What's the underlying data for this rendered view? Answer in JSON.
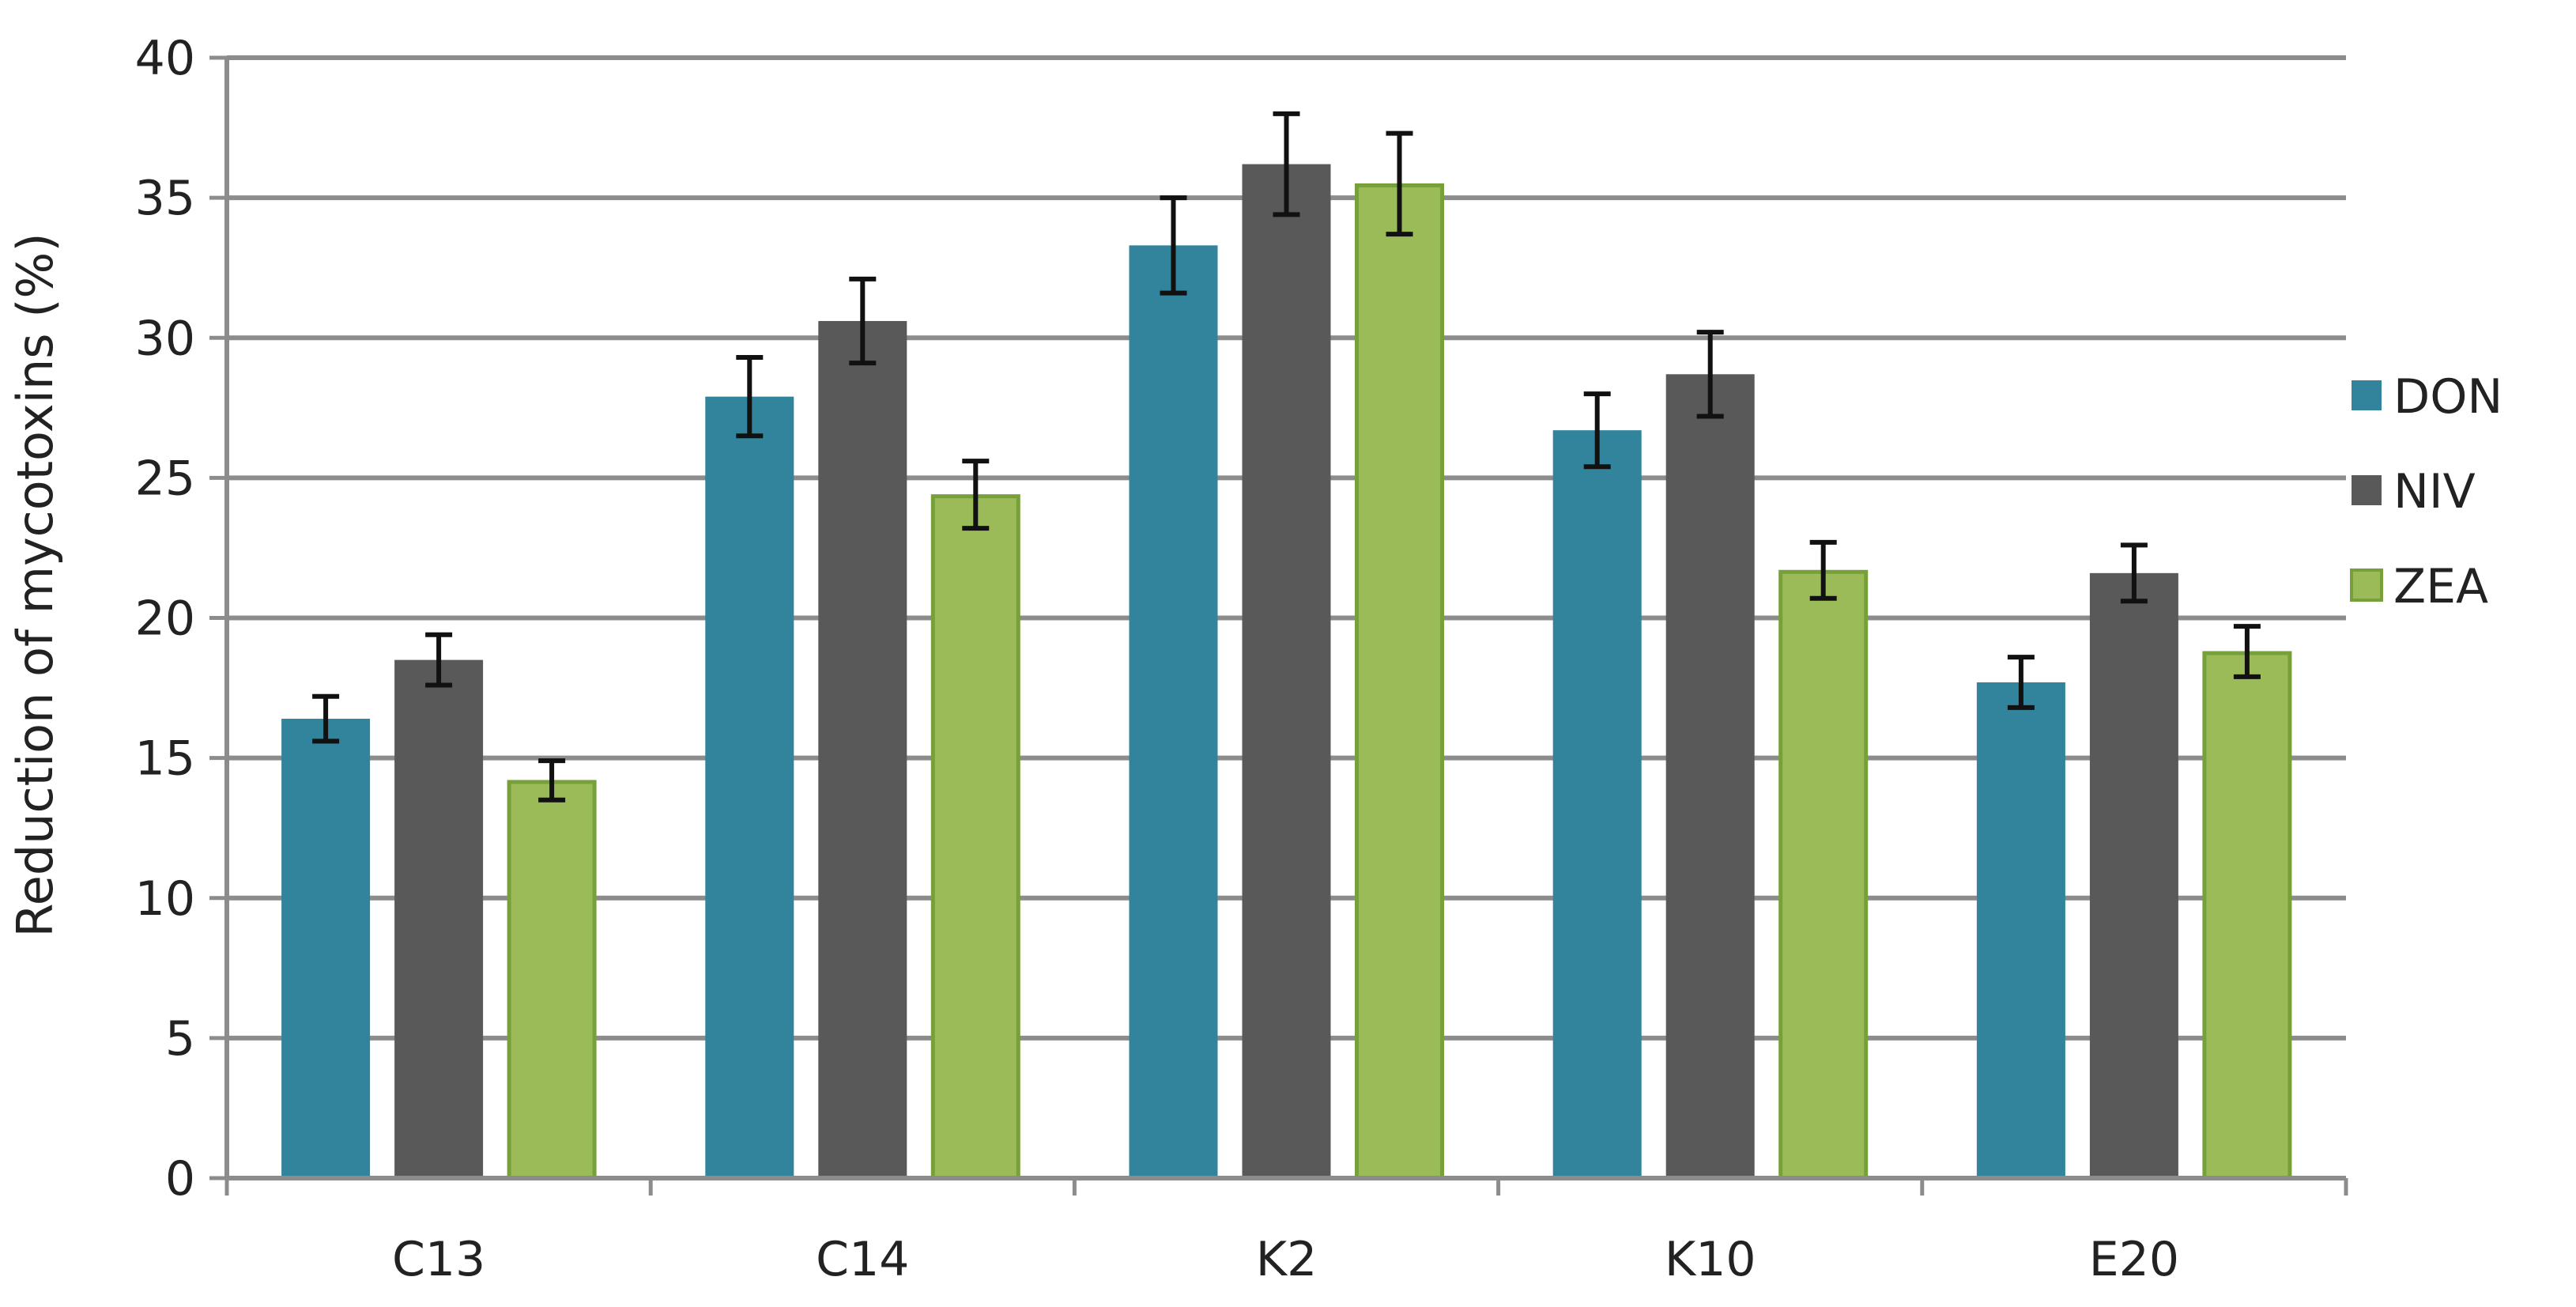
{
  "chart_data": {
    "type": "bar",
    "title": "",
    "xlabel": "",
    "ylabel": "Reduction of mycotoxins (%)",
    "ylim": [
      0,
      40
    ],
    "yticks": [
      0,
      5,
      10,
      15,
      20,
      25,
      30,
      35,
      40
    ],
    "grid": true,
    "legend_position": "right",
    "categories": [
      "C13",
      "C14",
      "K2",
      "K10",
      "E20"
    ],
    "series": [
      {
        "name": "DON",
        "color": "#31849B",
        "values": [
          16.4,
          27.9,
          33.3,
          26.7,
          17.7
        ],
        "errors": [
          0.8,
          1.4,
          1.7,
          1.3,
          0.9
        ]
      },
      {
        "name": "NIV",
        "color": "#595959",
        "values": [
          18.5,
          30.6,
          36.2,
          28.7,
          21.6
        ],
        "errors": [
          0.9,
          1.5,
          1.8,
          1.5,
          1.0
        ]
      },
      {
        "name": "ZEA",
        "color": "#9BBB59",
        "values": [
          14.2,
          24.4,
          35.5,
          21.7,
          18.8
        ],
        "errors": [
          0.7,
          1.2,
          1.8,
          1.0,
          0.9
        ]
      }
    ]
  }
}
